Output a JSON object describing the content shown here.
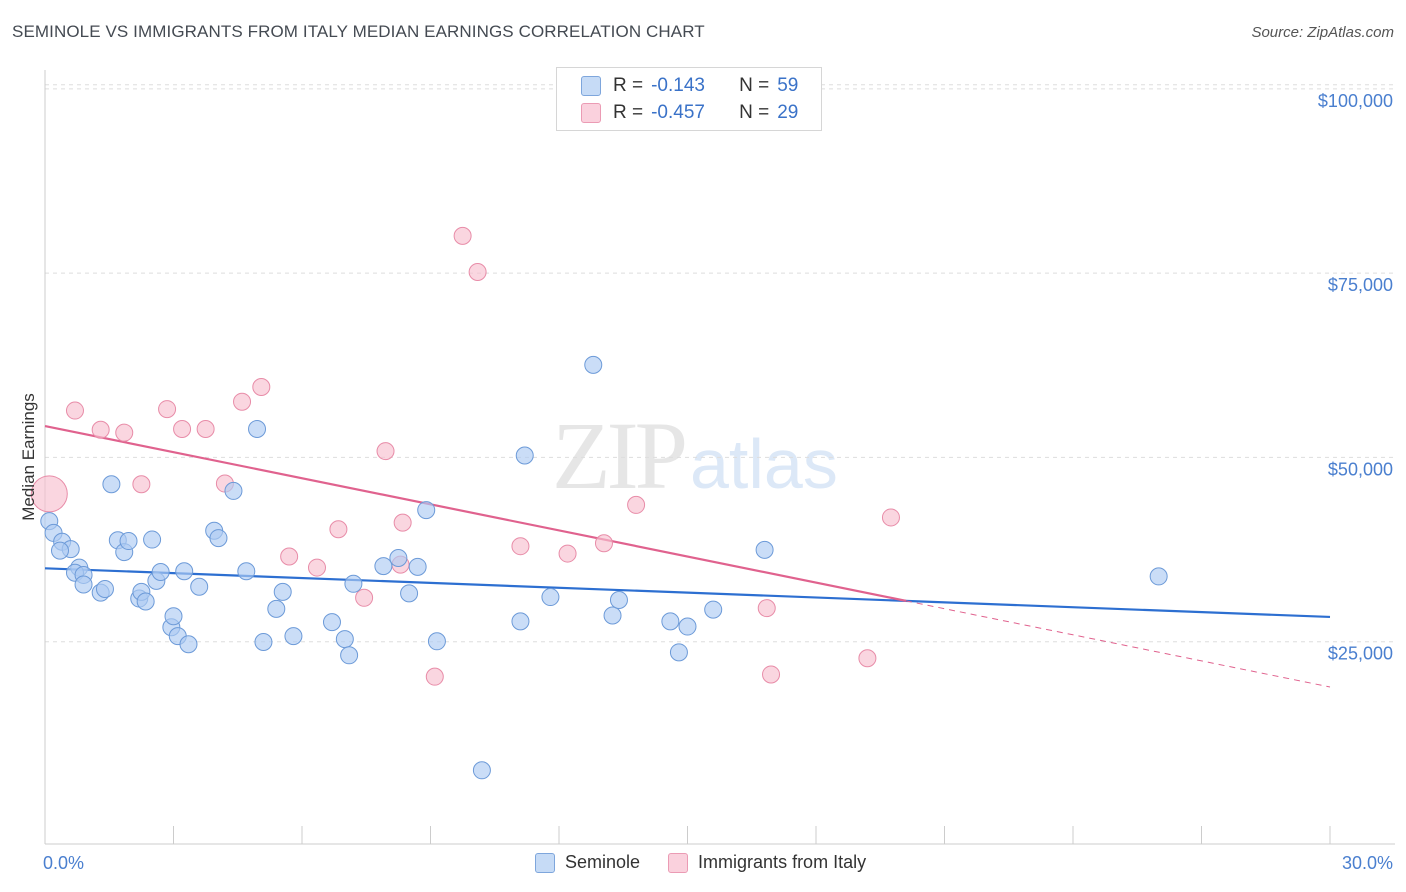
{
  "header": {
    "title": "SEMINOLE VS IMMIGRANTS FROM ITALY MEDIAN EARNINGS CORRELATION CHART",
    "source": "Source: ZipAtlas.com"
  },
  "watermark": {
    "zip": "ZIP",
    "atlas": "atlas"
  },
  "legend": {
    "rows": [
      {
        "r_label": "R =",
        "r_value": "-0.143",
        "n_label": "N =",
        "n_value": "59"
      },
      {
        "r_label": "R =",
        "r_value": "-0.457",
        "n_label": "N =",
        "n_value": "29"
      }
    ]
  },
  "bottom_legend": {
    "series1": "Seminole",
    "series2": "Immigrants from Italy"
  },
  "colors": {
    "seminole_fill": "#aecbf2",
    "seminole_stroke": "#6c9ad8",
    "seminole_line": "#2d6fd1",
    "italy_fill": "#f7c0d0",
    "italy_stroke": "#e88ca8",
    "italy_line": "#e0628e",
    "grid": "#dddddd",
    "tick_text": "#4a7fcf"
  },
  "chart_data": {
    "type": "scatter",
    "title": "SEMINOLE VS IMMIGRANTS FROM ITALY MEDIAN EARNINGS CORRELATION CHART",
    "xlabel": "",
    "ylabel": "Median Earnings",
    "xlim": [
      0,
      30
    ],
    "ylim": [
      0,
      105000
    ],
    "x_tick_labels": [
      "0.0%",
      "30.0%"
    ],
    "y_ticks": [
      25000,
      50000,
      75000,
      100000
    ],
    "y_tick_labels": [
      "$25,000",
      "$50,000",
      "$75,000",
      "$100,000"
    ],
    "grid": true,
    "legend_position": "top-center",
    "series": [
      {
        "name": "Seminole",
        "points": [
          [
            0.1,
            43800
          ],
          [
            0.2,
            42200
          ],
          [
            0.4,
            41000
          ],
          [
            0.6,
            40000
          ],
          [
            0.35,
            39800
          ],
          [
            0.8,
            37500
          ],
          [
            0.7,
            36800
          ],
          [
            0.9,
            36500
          ],
          [
            0.9,
            35200
          ],
          [
            1.3,
            34100
          ],
          [
            1.4,
            34600
          ],
          [
            1.55,
            48800
          ],
          [
            1.7,
            41200
          ],
          [
            1.85,
            39600
          ],
          [
            1.95,
            41100
          ],
          [
            2.2,
            33300
          ],
          [
            2.25,
            34200
          ],
          [
            2.35,
            32900
          ],
          [
            2.5,
            41300
          ],
          [
            2.6,
            35700
          ],
          [
            2.7,
            36900
          ],
          [
            2.95,
            29400
          ],
          [
            3.0,
            30900
          ],
          [
            3.1,
            28200
          ],
          [
            3.25,
            37000
          ],
          [
            3.35,
            27100
          ],
          [
            3.6,
            34900
          ],
          [
            3.95,
            42500
          ],
          [
            4.05,
            41500
          ],
          [
            4.4,
            47900
          ],
          [
            4.7,
            37000
          ],
          [
            4.95,
            56300
          ],
          [
            5.1,
            27400
          ],
          [
            5.4,
            31900
          ],
          [
            5.55,
            34200
          ],
          [
            5.8,
            28200
          ],
          [
            6.7,
            30100
          ],
          [
            7.0,
            27800
          ],
          [
            7.1,
            25600
          ],
          [
            7.2,
            35300
          ],
          [
            7.9,
            37700
          ],
          [
            8.25,
            38800
          ],
          [
            8.5,
            34000
          ],
          [
            8.7,
            37600
          ],
          [
            8.9,
            45300
          ],
          [
            9.15,
            27500
          ],
          [
            10.2,
            10000
          ],
          [
            11.1,
            30200
          ],
          [
            11.2,
            52700
          ],
          [
            11.8,
            33500
          ],
          [
            12.8,
            65000
          ],
          [
            13.25,
            31000
          ],
          [
            13.4,
            33100
          ],
          [
            14.6,
            30200
          ],
          [
            14.8,
            26000
          ],
          [
            15.0,
            29500
          ],
          [
            15.6,
            31800
          ],
          [
            16.8,
            39900
          ],
          [
            26.0,
            36300
          ]
        ],
        "trend": {
          "x": [
            0,
            30
          ],
          "y": [
            37400,
            30800
          ]
        }
      },
      {
        "name": "Immigrants from Italy",
        "points": [
          [
            0.1,
            47500
          ],
          [
            0.7,
            58800
          ],
          [
            1.3,
            56200
          ],
          [
            1.85,
            55800
          ],
          [
            2.25,
            48800
          ],
          [
            2.85,
            59000
          ],
          [
            3.2,
            56300
          ],
          [
            3.75,
            56300
          ],
          [
            4.2,
            48900
          ],
          [
            4.6,
            60000
          ],
          [
            5.05,
            62000
          ],
          [
            5.7,
            39000
          ],
          [
            6.35,
            37500
          ],
          [
            6.85,
            42700
          ],
          [
            7.45,
            33400
          ],
          [
            7.95,
            53300
          ],
          [
            8.3,
            37900
          ],
          [
            8.35,
            43600
          ],
          [
            9.1,
            22700
          ],
          [
            9.75,
            82500
          ],
          [
            10.1,
            77600
          ],
          [
            11.1,
            40400
          ],
          [
            12.2,
            39400
          ],
          [
            13.05,
            40800
          ],
          [
            13.8,
            46000
          ],
          [
            16.85,
            32000
          ],
          [
            16.95,
            23000
          ],
          [
            19.2,
            25200
          ],
          [
            19.75,
            44300
          ]
        ],
        "trend": {
          "x": [
            0,
            30
          ],
          "y": [
            56700,
            21300
          ],
          "solid_until_x": 20.1
        }
      }
    ]
  }
}
